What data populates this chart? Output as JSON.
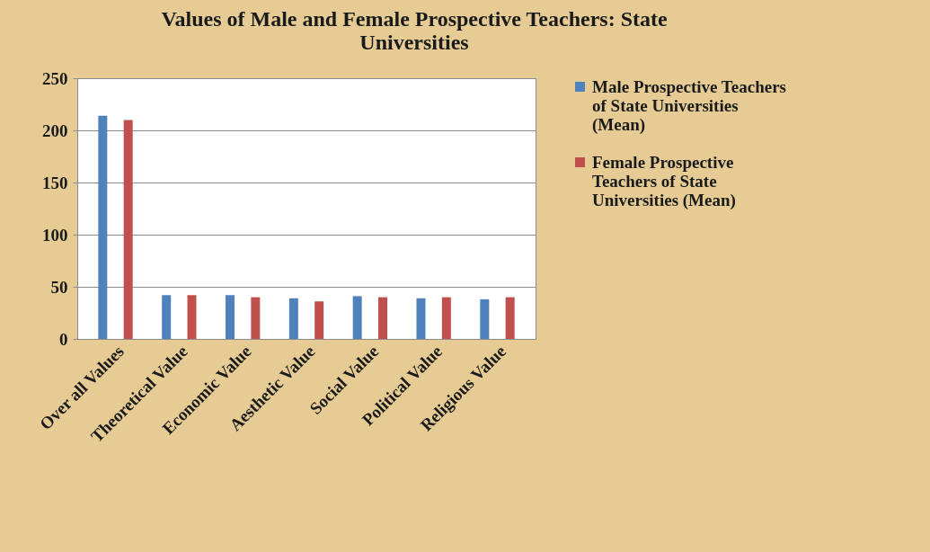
{
  "chart_data": {
    "type": "bar",
    "title": "Values of Male and Female Prospective Teachers: State Universities",
    "categories": [
      "Over all Values",
      "Theoretical Value",
      "Economic Value",
      "Aesthetic Value",
      "Social Value",
      "Political Value",
      "Religious Value"
    ],
    "series": [
      {
        "name": "Male Prospective Teachers of State Universities (Mean)",
        "color": "#4f81bd",
        "values": [
          214,
          42,
          42,
          39,
          41,
          39,
          38
        ]
      },
      {
        "name": "Female Prospective Teachers of State Universities (Mean)",
        "color": "#c0504d",
        "values": [
          210,
          42,
          40,
          36,
          40,
          40,
          40
        ]
      }
    ],
    "ylim": [
      0,
      250
    ],
    "yticks": [
      0,
      50,
      100,
      150,
      200,
      250
    ],
    "grid": "y",
    "legend": "right"
  }
}
